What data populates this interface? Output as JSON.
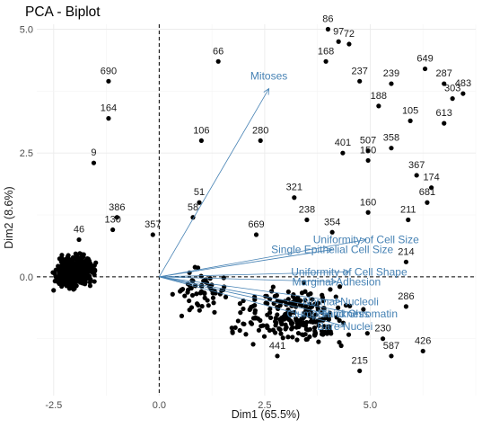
{
  "chart_data": {
    "type": "scatter",
    "title": "PCA - Biplot",
    "xlabel": "Dim1 (65.5%)",
    "ylabel": "Dim2 (8.6%)",
    "xlim": [
      -2.9,
      7.5
    ],
    "ylim": [
      -2.4,
      5.1
    ],
    "x_ticks": [
      -2.5,
      0.0,
      2.5,
      5.0
    ],
    "x_tick_labels": [
      "-2.5",
      "0.0",
      "2.5",
      "5.0"
    ],
    "y_ticks": [
      0.0,
      2.5,
      5.0
    ],
    "y_tick_labels": [
      "0.0",
      "2.5",
      "5.0"
    ],
    "grid": true,
    "reference_lines": {
      "x": 0,
      "y": 0
    },
    "labeled_points": [
      {
        "label": "690",
        "x": -1.2,
        "y": 3.95
      },
      {
        "label": "164",
        "x": -1.2,
        "y": 3.2
      },
      {
        "label": "9",
        "x": -1.55,
        "y": 2.3
      },
      {
        "label": "66",
        "x": 1.4,
        "y": 4.35
      },
      {
        "label": "106",
        "x": 1.0,
        "y": 2.75
      },
      {
        "label": "280",
        "x": 2.4,
        "y": 2.75
      },
      {
        "label": "51",
        "x": 0.95,
        "y": 1.5
      },
      {
        "label": "58",
        "x": 0.8,
        "y": 1.2
      },
      {
        "label": "386",
        "x": -1.0,
        "y": 1.2
      },
      {
        "label": "130",
        "x": -1.1,
        "y": 0.95
      },
      {
        "label": "357",
        "x": -0.15,
        "y": 0.85
      },
      {
        "label": "46",
        "x": -1.9,
        "y": 0.75
      },
      {
        "label": "321",
        "x": 3.2,
        "y": 1.6
      },
      {
        "label": "238",
        "x": 3.5,
        "y": 1.15
      },
      {
        "label": "669",
        "x": 2.3,
        "y": 0.85
      },
      {
        "label": "354",
        "x": 4.1,
        "y": 0.9
      },
      {
        "label": "86",
        "x": 4.0,
        "y": 5.0
      },
      {
        "label": "97",
        "x": 4.25,
        "y": 4.75
      },
      {
        "label": "72",
        "x": 4.5,
        "y": 4.7
      },
      {
        "label": "168",
        "x": 3.95,
        "y": 4.35
      },
      {
        "label": "237",
        "x": 4.75,
        "y": 3.95
      },
      {
        "label": "239",
        "x": 5.5,
        "y": 3.9
      },
      {
        "label": "188",
        "x": 5.2,
        "y": 3.45
      },
      {
        "label": "649",
        "x": 6.3,
        "y": 4.2
      },
      {
        "label": "287",
        "x": 6.75,
        "y": 3.9
      },
      {
        "label": "303",
        "x": 6.95,
        "y": 3.6
      },
      {
        "label": "483",
        "x": 7.2,
        "y": 3.7
      },
      {
        "label": "105",
        "x": 5.95,
        "y": 3.15
      },
      {
        "label": "613",
        "x": 6.75,
        "y": 3.1
      },
      {
        "label": "358",
        "x": 5.5,
        "y": 2.6
      },
      {
        "label": "507",
        "x": 4.95,
        "y": 2.55
      },
      {
        "label": "150",
        "x": 4.95,
        "y": 2.35
      },
      {
        "label": "401",
        "x": 4.35,
        "y": 2.5
      },
      {
        "label": "367",
        "x": 6.1,
        "y": 2.05
      },
      {
        "label": "174",
        "x": 6.45,
        "y": 1.8
      },
      {
        "label": "681",
        "x": 6.35,
        "y": 1.5
      },
      {
        "label": "160",
        "x": 4.95,
        "y": 1.3
      },
      {
        "label": "211",
        "x": 5.9,
        "y": 1.15
      },
      {
        "label": "214",
        "x": 5.85,
        "y": 0.3
      },
      {
        "label": "286",
        "x": 5.85,
        "y": -0.6
      },
      {
        "label": "230",
        "x": 5.3,
        "y": -1.25
      },
      {
        "label": "426",
        "x": 6.25,
        "y": -1.5
      },
      {
        "label": "587",
        "x": 5.5,
        "y": -1.6
      },
      {
        "label": "215",
        "x": 4.75,
        "y": -1.9
      },
      {
        "label": "441",
        "x": 2.8,
        "y": -1.6
      }
    ],
    "variables": [
      {
        "label": "Mitoses",
        "x": 2.6,
        "y": 3.8
      },
      {
        "label": "Uniformity of Cell Size",
        "x": 4.9,
        "y": 0.75
      },
      {
        "label": "Single Epithelial Cell Size",
        "x": 4.1,
        "y": 0.55
      },
      {
        "label": "Uniformity of Cell Shape",
        "x": 4.5,
        "y": 0.1
      },
      {
        "label": "Marginal Adhesion",
        "x": 4.2,
        "y": -0.1
      },
      {
        "label": "Normal Nucleoli",
        "x": 4.3,
        "y": -0.5
      },
      {
        "label": "Bland Chromatin",
        "x": 4.7,
        "y": -0.75
      },
      {
        "label": "Bare Nuclei",
        "x": 4.4,
        "y": -1.0
      },
      {
        "label": "Clump Thickness",
        "x": 4.0,
        "y": -0.75
      }
    ]
  }
}
